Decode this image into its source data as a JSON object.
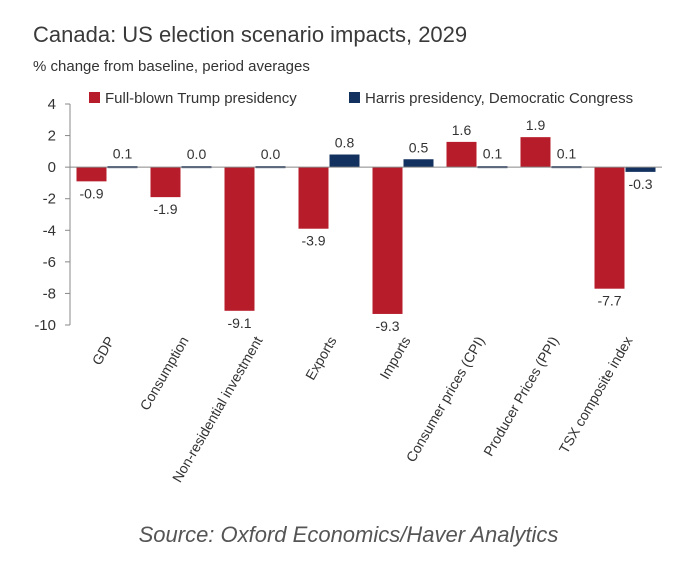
{
  "title": "Canada: US election scenario impacts, 2029",
  "subtitle": "% change from baseline, period averages",
  "source": "Source: Oxford Economics/Haver Analytics",
  "colors": {
    "trump": "#B71C2A",
    "harris": "#13315F",
    "axis": "#888888",
    "text": "#333333"
  },
  "chart_data": {
    "type": "bar",
    "title": "Canada: US election scenario impacts, 2029",
    "subtitle": "% change from baseline, period averages",
    "categories": [
      "GDP",
      "Consumption",
      "Non-residential investment",
      "Exports",
      "Imports",
      "Consumer prices (CPI)",
      "Producer Prices (PPI)",
      "TSX composite index"
    ],
    "series": [
      {
        "name": "Full-blown Trump presidency",
        "values": [
          -0.9,
          -1.9,
          -9.1,
          -3.9,
          -9.3,
          1.6,
          1.9,
          -7.7
        ]
      },
      {
        "name": "Harris presidency, Democratic Congress",
        "values": [
          0.1,
          0.0,
          0.0,
          0.8,
          0.5,
          0.1,
          0.1,
          -0.3
        ]
      }
    ],
    "value_labels": [
      [
        "-0.9",
        "-1.9",
        "-9.1",
        "-3.9",
        "-9.3",
        "1.6",
        "1.9",
        "-7.7"
      ],
      [
        "0.1",
        "0.0",
        "0.0",
        "0.8",
        "0.5",
        "0.1",
        "0.1",
        "-0.3"
      ]
    ],
    "ylim": [
      -10,
      4
    ],
    "yticks": [
      4,
      2,
      0,
      -2,
      -4,
      -6,
      -8,
      -10
    ],
    "xlabel": "",
    "ylabel": "",
    "grid": false,
    "legend": "top"
  }
}
